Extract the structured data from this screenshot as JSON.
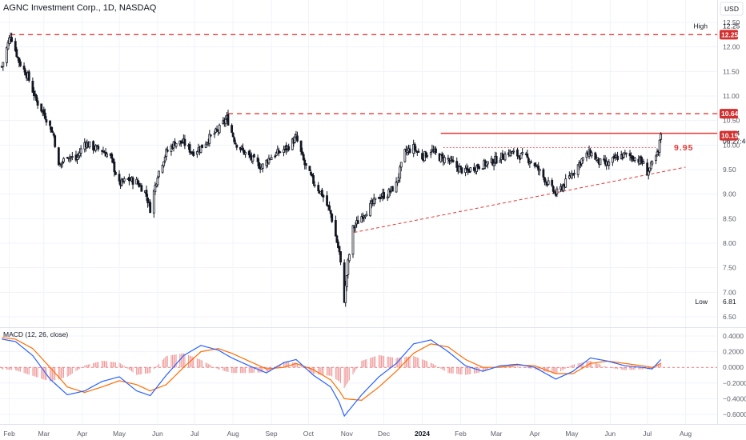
{
  "header": {
    "title": "AGNC Investment Corp., 1D, NASDAQ",
    "currency": "USD"
  },
  "colors": {
    "candle": "#131722",
    "red_line": "#e53935",
    "red_tag": "#d32f2f",
    "macd_line": "#2962ff",
    "signal_line": "#ff6d00",
    "hist_pos": "#ef9a9a",
    "hist_neg": "#ef9a9a",
    "grid": "#f0f3fa"
  },
  "price_axis": {
    "ticks": [
      "12.50",
      "12.00",
      "11.50",
      "11.00",
      "10.50",
      "10.00",
      "9.50",
      "9.00",
      "8.50",
      "8.00",
      "7.50",
      "7.00",
      "6.50"
    ],
    "range": [
      6.3,
      12.6
    ],
    "tags": [
      {
        "label": "High",
        "value": "12.25",
        "kind": "hl"
      },
      {
        "label": "",
        "value": "12.25",
        "kind": "red"
      },
      {
        "label": "",
        "value": "10.64",
        "kind": "red"
      },
      {
        "label": "",
        "value": "10.24",
        "kind": "plain"
      },
      {
        "label": "",
        "value": "06:27:46",
        "kind": "plain"
      },
      {
        "label": "",
        "value": "10.19",
        "kind": "red"
      },
      {
        "label": "Low",
        "value": "6.81",
        "kind": "hl"
      }
    ]
  },
  "annotation": {
    "text": "9.95"
  },
  "macd": {
    "title": "MACD (12, 26, close)",
    "ticks": [
      "0.4000",
      "0.2000",
      "0.0000",
      "−0.2000",
      "−0.4000",
      "−0.6000"
    ],
    "range": [
      -0.65,
      0.45
    ]
  },
  "time_axis": {
    "labels": [
      {
        "text": "Feb",
        "bold": false
      },
      {
        "text": "Mar",
        "bold": false
      },
      {
        "text": "Apr",
        "bold": false
      },
      {
        "text": "May",
        "bold": false
      },
      {
        "text": "Jun",
        "bold": false
      },
      {
        "text": "Jul",
        "bold": false
      },
      {
        "text": "Aug",
        "bold": false
      },
      {
        "text": "Sep",
        "bold": false
      },
      {
        "text": "Oct",
        "bold": false
      },
      {
        "text": "Nov",
        "bold": false
      },
      {
        "text": "Dec",
        "bold": false
      },
      {
        "text": "2024",
        "bold": true
      },
      {
        "text": "Feb",
        "bold": false
      },
      {
        "text": "Mar",
        "bold": false
      },
      {
        "text": "Apr",
        "bold": false
      },
      {
        "text": "May",
        "bold": false
      },
      {
        "text": "Jun",
        "bold": false
      },
      {
        "text": "Jul",
        "bold": false
      },
      {
        "text": "Aug",
        "bold": false
      }
    ]
  },
  "chart_data": {
    "type": "line",
    "subtype": "candlestick",
    "title": "AGNC Investment Corp., 1D, NASDAQ",
    "ylim": [
      6.3,
      12.6
    ],
    "grid": true,
    "price_anchors": [
      [
        "2023-01-26",
        11.6
      ],
      [
        "2023-02-02",
        12.25
      ],
      [
        "2023-02-09",
        11.7
      ],
      [
        "2023-02-16",
        11.4
      ],
      [
        "2023-02-23",
        10.9
      ],
      [
        "2023-03-02",
        10.6
      ],
      [
        "2023-03-09",
        10.2
      ],
      [
        "2023-03-13",
        9.55
      ],
      [
        "2023-03-20",
        9.8
      ],
      [
        "2023-03-27",
        9.7
      ],
      [
        "2023-04-03",
        10.05
      ],
      [
        "2023-04-10",
        9.95
      ],
      [
        "2023-04-17",
        9.9
      ],
      [
        "2023-04-24",
        9.75
      ],
      [
        "2023-05-01",
        9.2
      ],
      [
        "2023-05-08",
        9.3
      ],
      [
        "2023-05-15",
        9.25
      ],
      [
        "2023-05-22",
        9.05
      ],
      [
        "2023-05-26",
        8.7
      ],
      [
        "2023-06-01",
        9.4
      ],
      [
        "2023-06-08",
        9.85
      ],
      [
        "2023-06-15",
        10.05
      ],
      [
        "2023-06-22",
        10.05
      ],
      [
        "2023-06-29",
        9.85
      ],
      [
        "2023-07-06",
        9.95
      ],
      [
        "2023-07-13",
        10.15
      ],
      [
        "2023-07-20",
        10.3
      ],
      [
        "2023-07-27",
        10.55
      ],
      [
        "2023-08-03",
        10.05
      ],
      [
        "2023-08-10",
        9.85
      ],
      [
        "2023-08-17",
        9.7
      ],
      [
        "2023-08-24",
        9.55
      ],
      [
        "2023-08-31",
        9.75
      ],
      [
        "2023-09-07",
        9.85
      ],
      [
        "2023-09-14",
        9.95
      ],
      [
        "2023-09-21",
        10.15
      ],
      [
        "2023-09-28",
        9.6
      ],
      [
        "2023-10-05",
        9.25
      ],
      [
        "2023-10-12",
        9.0
      ],
      [
        "2023-10-19",
        8.6
      ],
      [
        "2023-10-26",
        7.8
      ],
      [
        "2023-10-30",
        6.85
      ],
      [
        "2023-11-02",
        7.6
      ],
      [
        "2023-11-06",
        8.3
      ],
      [
        "2023-11-13",
        8.55
      ],
      [
        "2023-11-20",
        8.75
      ],
      [
        "2023-11-27",
        8.95
      ],
      [
        "2023-12-04",
        9.0
      ],
      [
        "2023-12-11",
        9.2
      ],
      [
        "2023-12-18",
        9.85
      ],
      [
        "2023-12-25",
        9.95
      ],
      [
        "2024-01-01",
        9.75
      ],
      [
        "2024-01-08",
        9.9
      ],
      [
        "2024-01-15",
        9.75
      ],
      [
        "2024-01-22",
        9.7
      ],
      [
        "2024-01-29",
        9.55
      ],
      [
        "2024-02-05",
        9.45
      ],
      [
        "2024-02-12",
        9.55
      ],
      [
        "2024-02-19",
        9.6
      ],
      [
        "2024-02-26",
        9.65
      ],
      [
        "2024-03-04",
        9.75
      ],
      [
        "2024-03-11",
        9.85
      ],
      [
        "2024-03-18",
        9.8
      ],
      [
        "2024-03-25",
        9.75
      ],
      [
        "2024-04-01",
        9.6
      ],
      [
        "2024-04-08",
        9.35
      ],
      [
        "2024-04-15",
        9.1
      ],
      [
        "2024-04-18",
        9.0
      ],
      [
        "2024-04-25",
        9.2
      ],
      [
        "2024-05-02",
        9.45
      ],
      [
        "2024-05-09",
        9.7
      ],
      [
        "2024-05-16",
        9.85
      ],
      [
        "2024-05-23",
        9.65
      ],
      [
        "2024-05-30",
        9.6
      ],
      [
        "2024-06-06",
        9.75
      ],
      [
        "2024-06-13",
        9.8
      ],
      [
        "2024-06-20",
        9.75
      ],
      [
        "2024-06-27",
        9.65
      ],
      [
        "2024-07-01",
        9.45
      ],
      [
        "2024-07-05",
        9.6
      ],
      [
        "2024-07-10",
        9.85
      ],
      [
        "2024-07-12",
        10.24
      ]
    ],
    "levels": [
      {
        "name": "High",
        "value": 12.25,
        "style": "dashed",
        "from": "2023-02-02",
        "to": "2024-08-31"
      },
      {
        "value": 10.64,
        "style": "dashed",
        "from": "2023-07-28",
        "to": "2024-08-31"
      },
      {
        "value": 10.24,
        "style": "solid",
        "from": "2024-01-16",
        "to": "2024-08-31"
      },
      {
        "value": 9.95,
        "style": "dotted",
        "from": "2024-01-18",
        "to": "2024-07-08",
        "label": "9.95"
      }
    ],
    "trendline": {
      "from": [
        "2023-11-07",
        8.22
      ],
      "to": [
        "2024-08-01",
        9.55
      ],
      "style": "dashed"
    },
    "macd_anchors": [
      [
        "2023-01-26",
        0.36
      ],
      [
        "2023-02-06",
        0.33
      ],
      [
        "2023-02-20",
        0.15
      ],
      [
        "2023-03-06",
        -0.15
      ],
      [
        "2023-03-20",
        -0.35
      ],
      [
        "2023-04-03",
        -0.3
      ],
      [
        "2023-04-17",
        -0.18
      ],
      [
        "2023-05-01",
        -0.12
      ],
      [
        "2023-05-15",
        -0.3
      ],
      [
        "2023-05-26",
        -0.36
      ],
      [
        "2023-06-08",
        -0.1
      ],
      [
        "2023-06-22",
        0.15
      ],
      [
        "2023-07-06",
        0.28
      ],
      [
        "2023-07-20",
        0.22
      ],
      [
        "2023-07-31",
        0.12
      ],
      [
        "2023-08-14",
        0.02
      ],
      [
        "2023-08-28",
        -0.07
      ],
      [
        "2023-09-11",
        0.06
      ],
      [
        "2023-09-21",
        0.1
      ],
      [
        "2023-10-05",
        -0.1
      ],
      [
        "2023-10-19",
        -0.25
      ],
      [
        "2023-10-26",
        -0.45
      ],
      [
        "2023-10-30",
        -0.62
      ],
      [
        "2023-11-13",
        -0.35
      ],
      [
        "2023-11-27",
        -0.12
      ],
      [
        "2023-12-11",
        0.05
      ],
      [
        "2023-12-25",
        0.3
      ],
      [
        "2024-01-08",
        0.35
      ],
      [
        "2024-01-22",
        0.2
      ],
      [
        "2024-02-05",
        0.02
      ],
      [
        "2024-02-19",
        -0.05
      ],
      [
        "2024-03-04",
        0.02
      ],
      [
        "2024-03-18",
        0.04
      ],
      [
        "2024-04-01",
        0.0
      ],
      [
        "2024-04-18",
        -0.15
      ],
      [
        "2024-05-02",
        -0.05
      ],
      [
        "2024-05-16",
        0.12
      ],
      [
        "2024-05-30",
        0.08
      ],
      [
        "2024-06-13",
        0.02
      ],
      [
        "2024-06-27",
        0.0
      ],
      [
        "2024-07-05",
        -0.02
      ],
      [
        "2024-07-12",
        0.1
      ]
    ],
    "signal_anchors": [
      [
        "2023-01-26",
        0.38
      ],
      [
        "2023-02-06",
        0.36
      ],
      [
        "2023-02-20",
        0.24
      ],
      [
        "2023-03-06",
        0.0
      ],
      [
        "2023-03-20",
        -0.25
      ],
      [
        "2023-04-03",
        -0.32
      ],
      [
        "2023-04-17",
        -0.25
      ],
      [
        "2023-05-01",
        -0.17
      ],
      [
        "2023-05-15",
        -0.22
      ],
      [
        "2023-05-26",
        -0.3
      ],
      [
        "2023-06-08",
        -0.22
      ],
      [
        "2023-06-22",
        0.0
      ],
      [
        "2023-07-06",
        0.2
      ],
      [
        "2023-07-20",
        0.24
      ],
      [
        "2023-07-31",
        0.18
      ],
      [
        "2023-08-14",
        0.08
      ],
      [
        "2023-08-28",
        -0.02
      ],
      [
        "2023-09-11",
        0.0
      ],
      [
        "2023-09-21",
        0.05
      ],
      [
        "2023-10-05",
        -0.03
      ],
      [
        "2023-10-19",
        -0.16
      ],
      [
        "2023-10-26",
        -0.3
      ],
      [
        "2023-10-30",
        -0.4
      ],
      [
        "2023-11-13",
        -0.42
      ],
      [
        "2023-11-27",
        -0.25
      ],
      [
        "2023-12-11",
        -0.05
      ],
      [
        "2023-12-25",
        0.18
      ],
      [
        "2024-01-08",
        0.3
      ],
      [
        "2024-01-22",
        0.26
      ],
      [
        "2024-02-05",
        0.1
      ],
      [
        "2024-02-19",
        0.0
      ],
      [
        "2024-03-04",
        0.0
      ],
      [
        "2024-03-18",
        0.03
      ],
      [
        "2024-04-01",
        0.02
      ],
      [
        "2024-04-18",
        -0.08
      ],
      [
        "2024-05-02",
        -0.08
      ],
      [
        "2024-05-16",
        0.05
      ],
      [
        "2024-05-30",
        0.08
      ],
      [
        "2024-06-13",
        0.05
      ],
      [
        "2024-06-27",
        0.02
      ],
      [
        "2024-07-05",
        0.0
      ],
      [
        "2024-07-12",
        0.05
      ]
    ]
  }
}
